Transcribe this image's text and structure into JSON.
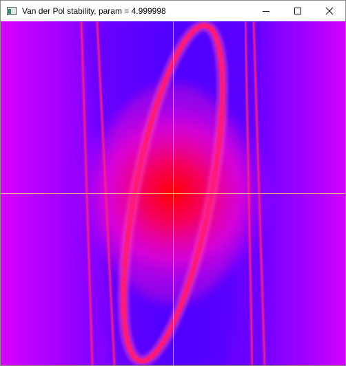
{
  "window": {
    "title": "Van der Pol stability, param = 4.999998",
    "icon": "app-window-icon",
    "controls": [
      "minimize-icon",
      "maximize-icon",
      "close-icon"
    ]
  },
  "plot": {
    "colors": {
      "background_blue": "#5a00ff",
      "edge_magenta": "#d800ff",
      "limit_cycle": "#ff1a7a",
      "center_red": "#ff0000",
      "axis_line": "#ffe27a"
    }
  }
}
